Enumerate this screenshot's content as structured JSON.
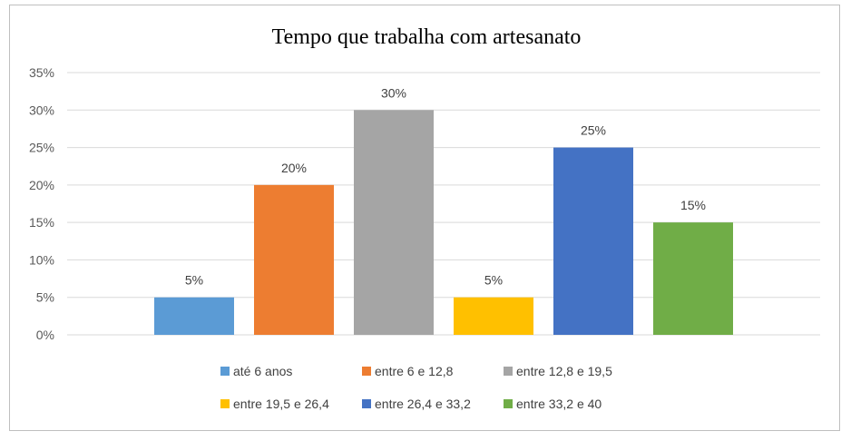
{
  "chart_data": {
    "type": "bar",
    "title": "Tempo que trabalha com artesanato",
    "xlabel": "",
    "ylabel": "",
    "ylim": [
      0,
      35
    ],
    "y_ticks": [
      "0%",
      "5%",
      "10%",
      "15%",
      "20%",
      "25%",
      "30%",
      "35%"
    ],
    "y_tick_values": [
      0,
      5,
      10,
      15,
      20,
      25,
      30,
      35
    ],
    "grid": true,
    "legend_position": "bottom",
    "series": [
      {
        "name": "até 6 anos",
        "value": 5,
        "label": "5%",
        "color": "#5b9bd5"
      },
      {
        "name": "entre 6 e 12,8",
        "value": 20,
        "label": "20%",
        "color": "#ed7d31"
      },
      {
        "name": "entre 12,8 e 19,5",
        "value": 30,
        "label": "30%",
        "color": "#a5a5a5"
      },
      {
        "name": "entre 19,5 e 26,4",
        "value": 5,
        "label": "5%",
        "color": "#ffc000"
      },
      {
        "name": "entre 26,4 e 33,2",
        "value": 25,
        "label": "25%",
        "color": "#4472c4"
      },
      {
        "name": "entre 33,2 e 40",
        "value": 15,
        "label": "15%",
        "color": "#70ad47"
      }
    ]
  }
}
